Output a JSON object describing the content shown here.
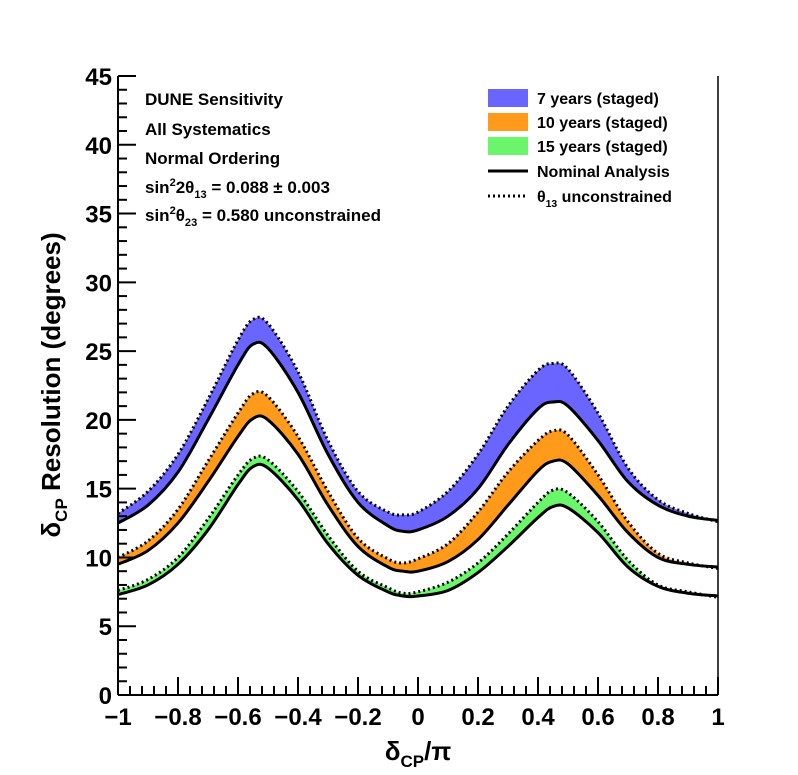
{
  "chart_data": {
    "type": "area",
    "title": "",
    "xlabel": {
      "main": "δ",
      "sub": "CP",
      "tail": "/π"
    },
    "ylabel": {
      "main": "δ",
      "sub": "CP",
      "tail": " Resolution (degrees)"
    },
    "xlim": [
      -1,
      1
    ],
    "ylim": [
      0,
      45
    ],
    "x_ticks": [
      -1,
      -0.8,
      -0.6,
      -0.4,
      -0.2,
      0,
      0.2,
      0.4,
      0.6,
      0.8,
      1
    ],
    "x_tick_labels": [
      "−1",
      "−0.8",
      "−0.6",
      "−0.4",
      "−0.2",
      "0",
      "0.2",
      "0.4",
      "0.6",
      "0.8",
      "1"
    ],
    "y_ticks": [
      0,
      5,
      10,
      15,
      20,
      25,
      30,
      35,
      40,
      45
    ],
    "y_tick_labels": [
      "0",
      "5",
      "10",
      "15",
      "20",
      "25",
      "30",
      "35",
      "40",
      "45"
    ],
    "grid": false,
    "annotations": [
      {
        "text": "DUNE Sensitivity"
      },
      {
        "text": "All Systematics"
      },
      {
        "text": "Normal Ordering"
      },
      {
        "parts": [
          [
            "sin",
            ""
          ],
          [
            "2",
            "sup"
          ],
          [
            "2θ",
            ""
          ],
          [
            "13",
            "sub"
          ],
          [
            " = 0.088 ± 0.003",
            ""
          ]
        ]
      },
      {
        "parts": [
          [
            "sin",
            ""
          ],
          [
            "2",
            "sup"
          ],
          [
            "θ",
            ""
          ],
          [
            "23",
            "sub"
          ],
          [
            " = 0.580 unconstrained",
            ""
          ]
        ]
      }
    ],
    "legend": {
      "placement": "top-right",
      "entries": [
        {
          "kind": "band",
          "color": "#6b65ff",
          "label": "7 years (staged)"
        },
        {
          "kind": "band",
          "color": "#ff9a1a",
          "label": "10 years (staged)"
        },
        {
          "kind": "band",
          "color": "#6bf56b",
          "label": "15 years (staged)"
        },
        {
          "kind": "solid",
          "label": "Nominal Analysis"
        },
        {
          "kind": "dotted",
          "label": "θ13 unconstrained",
          "label_parts": [
            [
              "θ",
              ""
            ],
            [
              "13",
              "sub"
            ],
            [
              " unconstrained",
              ""
            ]
          ]
        }
      ]
    },
    "x": [
      -1,
      -0.9,
      -0.8,
      -0.7,
      -0.6,
      -0.55,
      -0.5,
      -0.4,
      -0.3,
      -0.2,
      -0.1,
      -0.05,
      0,
      0.1,
      0.2,
      0.3,
      0.4,
      0.45,
      0.5,
      0.6,
      0.7,
      0.8,
      0.9,
      1
    ],
    "series": [
      {
        "name": "7 years (staged)",
        "color": "#6b65ff",
        "nominal": [
          12.5,
          13.8,
          16.2,
          20.0,
          24.0,
          25.5,
          25.2,
          22.0,
          17.5,
          14.0,
          12.3,
          11.9,
          12.0,
          13.0,
          15.0,
          18.2,
          20.8,
          21.3,
          21.0,
          18.5,
          15.5,
          13.8,
          13.0,
          12.7
        ],
        "unconstrained": [
          13.2,
          14.8,
          17.5,
          21.5,
          25.8,
          27.3,
          27.0,
          23.5,
          18.5,
          14.8,
          13.3,
          13.1,
          13.3,
          14.8,
          17.5,
          21.0,
          23.6,
          24.1,
          23.7,
          20.5,
          16.5,
          14.2,
          13.2,
          12.6
        ]
      },
      {
        "name": "10 years (staged)",
        "color": "#ff9a1a",
        "nominal": [
          9.5,
          10.5,
          12.5,
          15.5,
          18.8,
          20.1,
          20.0,
          17.5,
          13.8,
          10.8,
          9.3,
          9.0,
          9.0,
          9.7,
          11.3,
          13.8,
          16.3,
          17.0,
          16.8,
          14.5,
          11.8,
          10.0,
          9.5,
          9.3
        ],
        "unconstrained": [
          10.0,
          11.2,
          13.5,
          17.0,
          20.5,
          21.9,
          21.7,
          18.8,
          14.8,
          11.4,
          9.9,
          9.6,
          9.9,
          11.0,
          13.3,
          16.2,
          18.5,
          19.2,
          18.9,
          16.0,
          12.6,
          10.3,
          9.6,
          9.2
        ]
      },
      {
        "name": "15 years (staged)",
        "color": "#6bf56b",
        "nominal": [
          7.3,
          8.0,
          9.5,
          12.0,
          15.3,
          16.6,
          16.5,
          14.2,
          11.0,
          8.7,
          7.5,
          7.2,
          7.2,
          7.6,
          8.9,
          10.8,
          12.9,
          13.7,
          13.6,
          11.8,
          9.3,
          7.9,
          7.4,
          7.2
        ],
        "unconstrained": [
          7.6,
          8.4,
          10.0,
          12.8,
          16.0,
          17.2,
          17.1,
          14.8,
          11.6,
          9.0,
          7.8,
          7.4,
          7.5,
          8.2,
          9.6,
          11.7,
          14.0,
          14.9,
          14.7,
          12.6,
          9.8,
          8.0,
          7.5,
          7.1
        ]
      }
    ]
  }
}
